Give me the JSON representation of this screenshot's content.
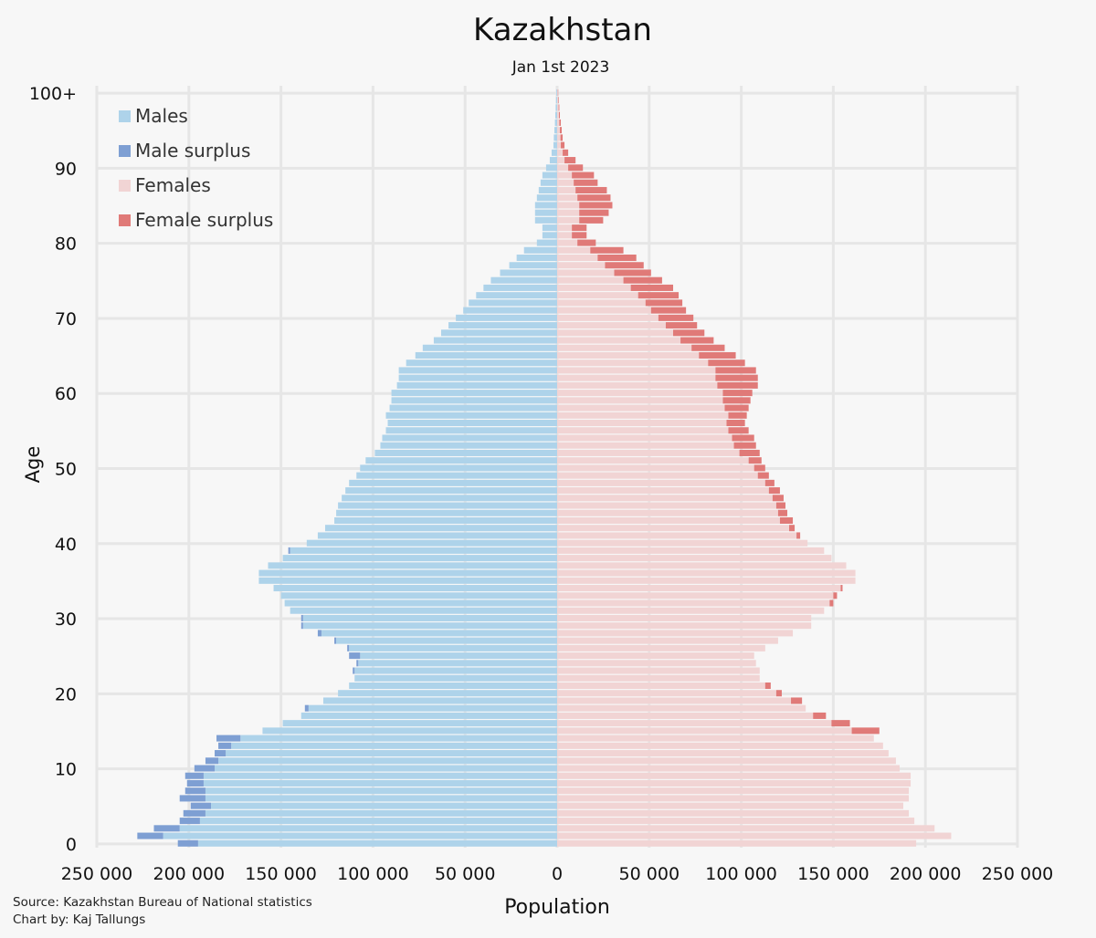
{
  "chart_data": {
    "type": "bar",
    "subtype": "population-pyramid",
    "title": "Kazakhstan",
    "subtitle": "Jan 1st 2023",
    "xlabel": "Population",
    "ylabel": "Age",
    "xlim": [
      -250000,
      250000
    ],
    "ylim": [
      0,
      100
    ],
    "grid": true,
    "legend_position": "top-left",
    "x_tick_values": [
      -250000,
      -200000,
      -150000,
      -100000,
      -50000,
      0,
      50000,
      100000,
      150000,
      200000,
      250000
    ],
    "x_tick_labels": [
      "250 000",
      "200 000",
      "150 000",
      "100 000",
      "50 000",
      "0",
      "50 000",
      "100 000",
      "150 000",
      "200 000",
      "250 000"
    ],
    "y_tick_values": [
      0,
      10,
      20,
      30,
      40,
      50,
      60,
      70,
      80,
      90,
      100
    ],
    "y_tick_labels": [
      "0",
      "10",
      "20",
      "30",
      "40",
      "50",
      "60",
      "70",
      "80",
      "90",
      "100+"
    ],
    "colors": {
      "Males": "#aed3ea",
      "Male surplus": "#7e9fd3",
      "Females": "#f1d4d4",
      "Female surplus": "#e07a78"
    },
    "legend": [
      {
        "label": "Males",
        "color": "#aed3ea"
      },
      {
        "label": "Male surplus",
        "color": "#7e9fd3"
      },
      {
        "label": "Females",
        "color": "#f1d4d4"
      },
      {
        "label": "Female surplus",
        "color": "#e07a78"
      }
    ],
    "ages": [
      0,
      1,
      2,
      3,
      4,
      5,
      6,
      7,
      8,
      9,
      10,
      11,
      12,
      13,
      14,
      15,
      16,
      17,
      18,
      19,
      20,
      21,
      22,
      23,
      24,
      25,
      26,
      27,
      28,
      29,
      30,
      31,
      32,
      33,
      34,
      35,
      36,
      37,
      38,
      39,
      40,
      41,
      42,
      43,
      44,
      45,
      46,
      47,
      48,
      49,
      50,
      51,
      52,
      53,
      54,
      55,
      56,
      57,
      58,
      59,
      60,
      61,
      62,
      63,
      64,
      65,
      66,
      67,
      68,
      69,
      70,
      71,
      72,
      73,
      74,
      75,
      76,
      77,
      78,
      79,
      80,
      81,
      82,
      83,
      84,
      85,
      86,
      87,
      88,
      89,
      90,
      91,
      92,
      93,
      94,
      95,
      96,
      97,
      98,
      99,
      100
    ],
    "series": [
      {
        "name": "Males",
        "values": [
          206000,
          228000,
          219000,
          205000,
          203000,
          199000,
          205000,
          202000,
          201000,
          202000,
          197000,
          191000,
          186000,
          184000,
          185000,
          160000,
          149000,
          139000,
          137000,
          127000,
          119000,
          113000,
          110000,
          111000,
          109000,
          113000,
          114000,
          121000,
          130000,
          139000,
          139000,
          145000,
          148000,
          150000,
          154000,
          162000,
          162000,
          157000,
          149000,
          146000,
          136000,
          130000,
          126000,
          121000,
          120000,
          119000,
          117000,
          115000,
          113000,
          109000,
          107000,
          104000,
          99000,
          96000,
          95000,
          93000,
          92000,
          93000,
          91000,
          90000,
          90000,
          87000,
          86000,
          86000,
          82000,
          77000,
          73000,
          67000,
          63000,
          59000,
          55000,
          51000,
          48000,
          44000,
          40000,
          36000,
          31000,
          26000,
          22000,
          18000,
          11000,
          8000,
          8000,
          12000,
          12000,
          12000,
          11000,
          10000,
          9000,
          8000,
          6000,
          4000,
          3000,
          2000,
          1800,
          1500,
          1200,
          1000,
          800,
          600,
          400
        ]
      },
      {
        "name": "Females",
        "values": [
          195000,
          214000,
          205000,
          194000,
          191000,
          188000,
          191000,
          191000,
          192000,
          192000,
          186000,
          184000,
          180000,
          177000,
          172000,
          175000,
          159000,
          146000,
          135000,
          133000,
          122000,
          116000,
          110000,
          110000,
          108000,
          107000,
          113000,
          120000,
          128000,
          138000,
          138000,
          145000,
          150000,
          152000,
          155000,
          162000,
          162000,
          157000,
          149000,
          145000,
          136000,
          132000,
          129000,
          128000,
          125000,
          124000,
          123000,
          121000,
          118000,
          115000,
          113000,
          111000,
          110000,
          108000,
          107000,
          104000,
          102000,
          103000,
          104000,
          105000,
          106000,
          109000,
          109000,
          108000,
          102000,
          97000,
          91000,
          85000,
          80000,
          76000,
          74000,
          70000,
          68000,
          66000,
          63000,
          57000,
          51000,
          47000,
          43000,
          36000,
          21000,
          16000,
          16000,
          25000,
          28000,
          30000,
          29000,
          27000,
          22000,
          20000,
          14000,
          10000,
          6000,
          4000,
          3000,
          2500,
          2000,
          1500,
          1200,
          900,
          600
        ]
      }
    ]
  }
}
